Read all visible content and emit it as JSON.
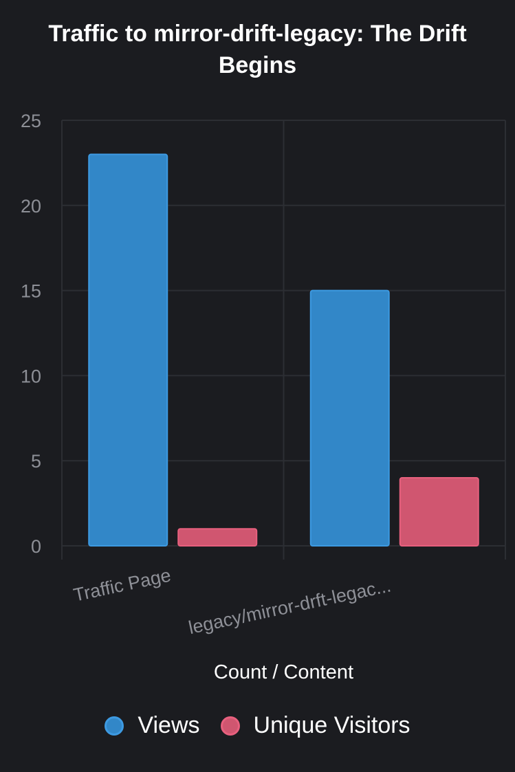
{
  "chart_data": {
    "type": "bar",
    "title": "Traffic to mirror-drift-legacy: The Drift Begins",
    "xlabel": "Count / Content",
    "ylabel": "",
    "categories": [
      "Traffic Page",
      "legacy/mirror-drft-legac..."
    ],
    "series": [
      {
        "name": "Views",
        "values": [
          23,
          15
        ],
        "color": "#3287c8",
        "border": "#3d9ae2"
      },
      {
        "name": "Unique Visitors",
        "values": [
          1,
          4
        ],
        "color": "#d05670",
        "border": "#e8607e"
      }
    ],
    "yticks": [
      "0",
      "5",
      "10",
      "15",
      "20",
      "25"
    ],
    "ylim": [
      0,
      25
    ],
    "grid": true,
    "legend": "bottom"
  }
}
